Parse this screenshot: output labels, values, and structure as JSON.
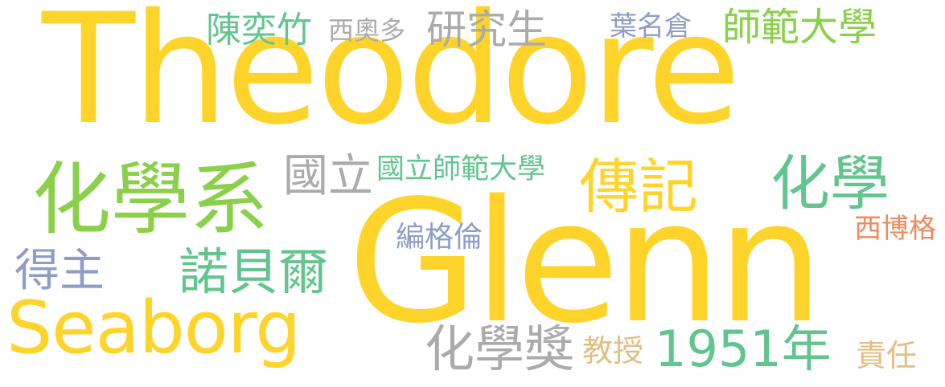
{
  "palette": {
    "yellow": "#FFD42A",
    "green": "#8BD04A",
    "teal": "#62C48E",
    "gray": "#ABABAB",
    "blue": "#8E9CC8",
    "orange": "#F08A60",
    "tan": "#E2BE83"
  },
  "words": {
    "theodore": "Theodore",
    "glenn": "Glenn",
    "seaborg": "Seaborg",
    "hua_xue_xi": "化學系",
    "hua_xue": "化學",
    "zhuan_ji": "傳記",
    "guo_li": "國立",
    "guo_li_shi_fan_da_xue": "國立師範大學",
    "chen_yi_zhu": "陳奕竹",
    "xi_ao_duo": "西奧多",
    "yan_jiu_sheng": "研究生",
    "ye_ming_cang": "葉名倉",
    "shi_fan_da_xue": "師範大學",
    "de_zhu": "得主",
    "nuo_bei_er": "諾貝爾",
    "bian_ge_lun": "編格倫",
    "xi_bo_ge": "西博格",
    "hua_xue_jiang": "化學獎",
    "jiao_shou": "教授",
    "year_1951": "1951年",
    "ze_ren": "責任"
  }
}
